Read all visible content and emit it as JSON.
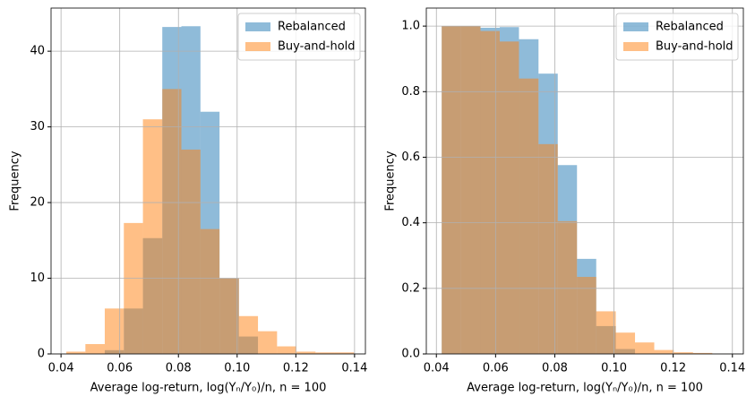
{
  "chart_data": [
    {
      "type": "histogram",
      "xlabel": "Average log-return, log(Yₙ/Y₀)/n, n = 100",
      "ylabel": "Frequency",
      "xlim": [
        0.0366,
        0.1437
      ],
      "ylim": [
        0,
        45.7
      ],
      "xticks": [
        0.04,
        0.06,
        0.08,
        {
          "value": 0.1,
          "label": "0.10"
        },
        0.12,
        0.14
      ],
      "yticks": [
        0,
        10,
        20,
        30,
        40
      ],
      "grid": true,
      "legend": "upper right",
      "alpha": 0.5,
      "bins": [
        0.0418,
        0.0483,
        0.0549,
        0.0614,
        0.0679,
        0.0745,
        0.081,
        0.0875,
        0.094,
        0.1006,
        0.1071,
        0.1136,
        0.1202,
        0.1267,
        0.1332,
        0.1398
      ],
      "series": [
        {
          "name": "Rebalanced",
          "color": "#1f77b4",
          "values": [
            0,
            0,
            0.5,
            6,
            15.3,
            43.2,
            43.3,
            32,
            10,
            2.3,
            0,
            0,
            0,
            0,
            0
          ]
        },
        {
          "name": "Buy-and-hold",
          "color": "#ff7f0e",
          "values": [
            0.3,
            1.3,
            6,
            17.3,
            31,
            35,
            27,
            16.5,
            10,
            5,
            3,
            1,
            0.3,
            0.2,
            0.2
          ]
        }
      ]
    },
    {
      "type": "histogram",
      "xlabel": "Average log-return, log(Yₙ/Y₀)/n, n = 100",
      "ylabel": "Frequency",
      "xlim": [
        0.0366,
        0.1437
      ],
      "ylim": [
        0,
        1.055
      ],
      "xticks": [
        0.04,
        0.06,
        0.08,
        {
          "value": 0.1,
          "label": "0.10"
        },
        0.12,
        0.14
      ],
      "yticks": [
        {
          "value": 0,
          "label": "0.0"
        },
        0.2,
        0.4,
        0.6,
        0.8,
        {
          "value": 1,
          "label": "1.0"
        }
      ],
      "grid": true,
      "legend": "upper right",
      "alpha": 0.5,
      "bins": [
        0.0418,
        0.0483,
        0.0549,
        0.0614,
        0.0679,
        0.0745,
        0.081,
        0.0875,
        0.094,
        0.1006,
        0.1071,
        0.1136,
        0.1202,
        0.1267,
        0.1332,
        0.1398
      ],
      "series": [
        {
          "name": "Rebalanced",
          "color": "#1f77b4",
          "values": [
            1,
            1,
            0.995,
            0.997,
            0.96,
            0.855,
            0.576,
            0.29,
            0.085,
            0.015,
            0,
            0,
            0,
            0,
            0
          ]
        },
        {
          "name": "Buy-and-hold",
          "color": "#ff7f0e",
          "values": [
            1,
            1,
            0.985,
            0.953,
            0.84,
            0.64,
            0.405,
            0.235,
            0.13,
            0.065,
            0.035,
            0.012,
            0.005,
            0.003,
            0.001
          ]
        }
      ]
    }
  ]
}
